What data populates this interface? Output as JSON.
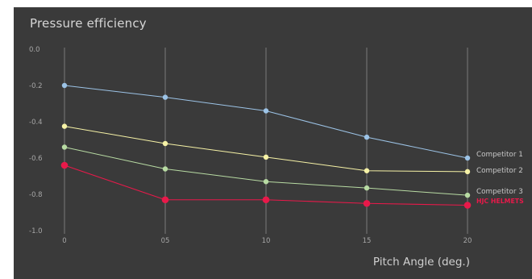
{
  "chart_data": {
    "type": "line",
    "title": "Pressure efficiency",
    "xlabel": "Pitch Angle (deg.)",
    "ylabel": "",
    "x": [
      "0",
      "05",
      "10",
      "15",
      "20"
    ],
    "y_ticks": [
      "0.0",
      "-0.2",
      "-0.4",
      "-0.6",
      "-0.8",
      "-1.0"
    ],
    "ylim": [
      -1.0,
      0.0
    ],
    "grid": "vertical",
    "legend": "right-end labels",
    "series": [
      {
        "name": "Competitor 1",
        "color": "#9cc3e6",
        "values": [
          -0.2,
          -0.265,
          -0.34,
          -0.485,
          -0.6
        ]
      },
      {
        "name": "Competitor 2",
        "color": "#f6f2a6",
        "values": [
          -0.425,
          -0.52,
          -0.595,
          -0.67,
          -0.675
        ]
      },
      {
        "name": "Competitor 3",
        "color": "#b8dba3",
        "values": [
          -0.54,
          -0.66,
          -0.73,
          -0.765,
          -0.805
        ]
      },
      {
        "name": "HJC HELMETS",
        "color": "#e8194a",
        "values": [
          -0.64,
          -0.83,
          -0.83,
          -0.85,
          -0.86
        ]
      }
    ]
  }
}
